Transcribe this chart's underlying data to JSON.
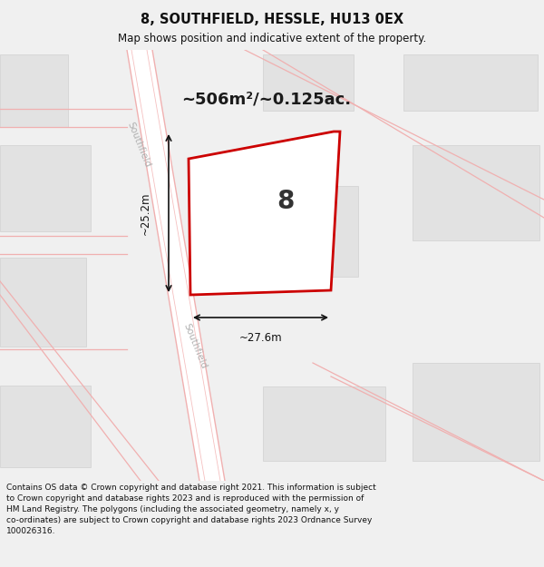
{
  "title": "8, SOUTHFIELD, HESSLE, HU13 0EX",
  "subtitle": "Map shows position and indicative extent of the property.",
  "area_label": "~506m²/~0.125ac.",
  "plot_number": "8",
  "dim_width": "~27.6m",
  "dim_height": "~25.2m",
  "footer_lines": [
    "Contains OS data © Crown copyright and database right 2021. This information is subject",
    "to Crown copyright and database rights 2023 and is reproduced with the permission of",
    "HM Land Registry. The polygons (including the associated geometry, namely x, y",
    "co-ordinates) are subject to Crown copyright and database rights 2023 Ordnance Survey",
    "100026316."
  ],
  "street_label": "Southfield",
  "fig_bg": "#f0f0f0",
  "map_bg": "#f5f5f5",
  "road_fill": "#ffffff",
  "road_edge": "#f0b0b0",
  "building_color": "#e2e2e2",
  "building_edge": "#d0d0d0",
  "plot_fill": "#ffffff",
  "plot_border": "#cc0000",
  "plot_border_lw": 2.0,
  "figsize": [
    6.0,
    6.25
  ],
  "dpi": 100
}
